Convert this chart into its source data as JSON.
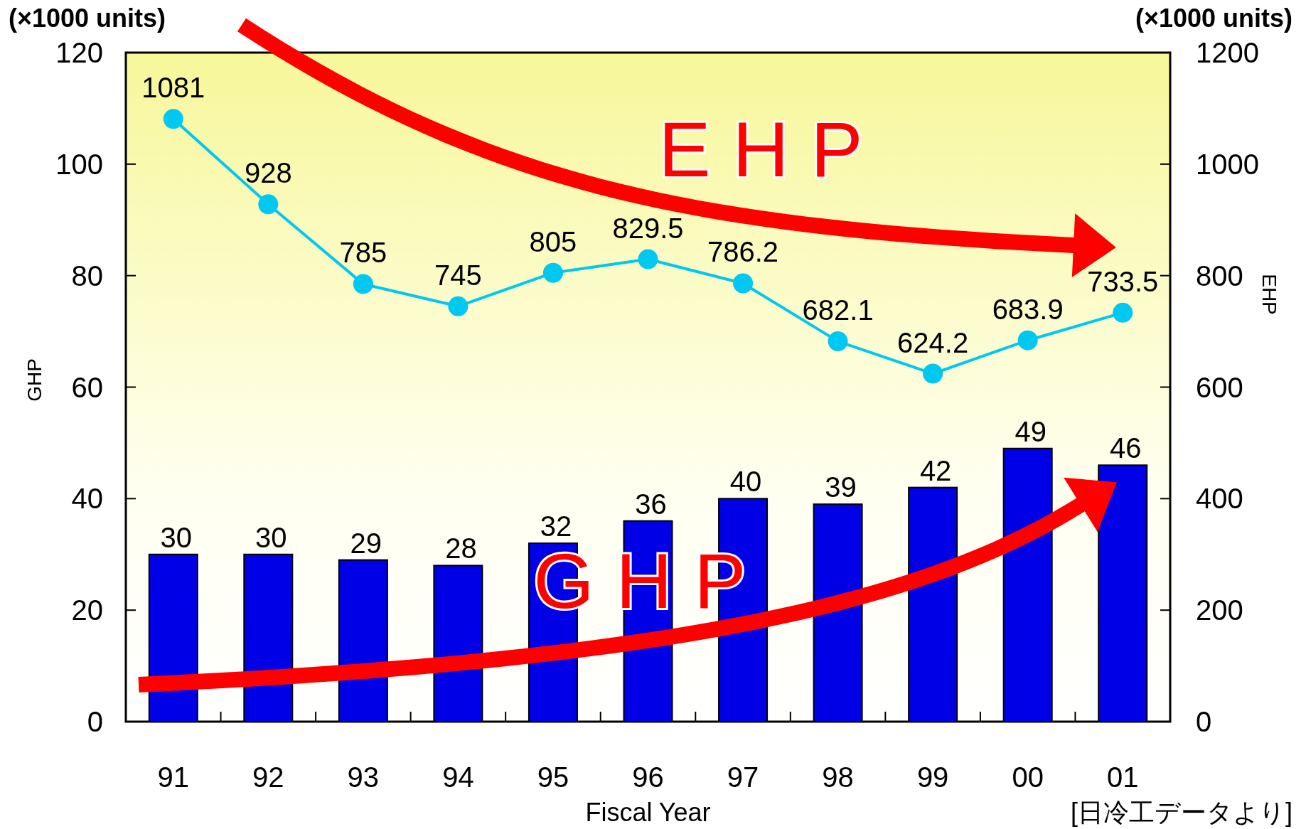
{
  "chart_data": {
    "type": "bar",
    "xlabel": "Fiscal Year",
    "ylabel": "GHP",
    "y2label": "EHP",
    "categories": [
      "91",
      "92",
      "93",
      "94",
      "95",
      "96",
      "97",
      "98",
      "99",
      "00",
      "01"
    ],
    "series": [
      {
        "color": "#0000e6",
        "values": [
          30,
          30,
          29,
          28,
          32,
          36,
          40,
          39,
          42,
          49,
          46
        ]
      },
      {
        "type": "line",
        "axis": "y2",
        "color": "#00c8f0",
        "values": [
          1081,
          928,
          785,
          745,
          805,
          829.5,
          786.2,
          682.1,
          624.2,
          683.9,
          733.5
        ]
      }
    ],
    "ylim": [
      0,
      120
    ],
    "yticks": [
      0,
      20,
      40,
      60,
      80,
      100,
      120
    ],
    "y2lim": [
      0,
      1200
    ],
    "y2ticks": [
      0,
      200,
      400,
      600,
      800,
      1000,
      1200
    ],
    "marker": "circle",
    "data_labels": true,
    "grid": false,
    "annotations": [
      "(×1000 units)",
      "(×1000 units)",
      "E H P",
      "G H P",
      "[日冷工データより]"
    ]
  }
}
